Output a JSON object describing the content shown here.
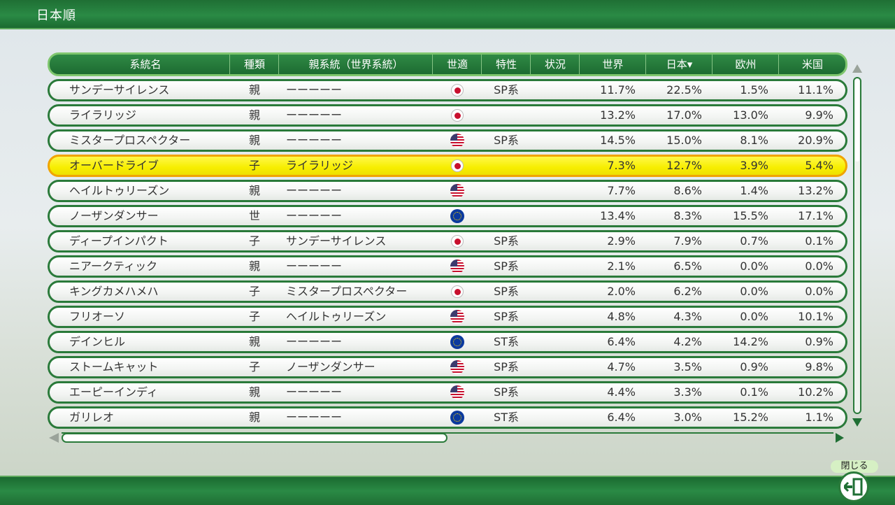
{
  "page": {
    "title": "日本順"
  },
  "columns": {
    "name": "系統名",
    "kind": "種類",
    "parent": "親系統（世界系統）",
    "fit": "世適",
    "trait": "特性",
    "status": "状況",
    "world": "世界",
    "japan": "日本▾",
    "europe": "欧州",
    "us": "米国"
  },
  "rows": [
    {
      "name": "サンデーサイレンス",
      "kind": "親",
      "parent": "ーーーーー",
      "flag": "jp",
      "trait": "SP系",
      "status": "",
      "world": "11.7%",
      "japan": "22.5%",
      "europe": "1.5%",
      "us": "11.1%"
    },
    {
      "name": "ライラリッジ",
      "kind": "親",
      "parent": "ーーーーー",
      "flag": "jp",
      "trait": "",
      "status": "",
      "world": "13.2%",
      "japan": "17.0%",
      "europe": "13.0%",
      "us": "9.9%"
    },
    {
      "name": "ミスタープロスペクター",
      "kind": "親",
      "parent": "ーーーーー",
      "flag": "us",
      "trait": "SP系",
      "status": "",
      "world": "14.5%",
      "japan": "15.0%",
      "europe": "8.1%",
      "us": "20.9%"
    },
    {
      "name": "オーバードライブ",
      "kind": "子",
      "parent": "ライラリッジ",
      "flag": "jp",
      "trait": "",
      "status": "",
      "world": "7.3%",
      "japan": "12.7%",
      "europe": "3.9%",
      "us": "5.4%",
      "selected": true
    },
    {
      "name": "ヘイルトゥリーズン",
      "kind": "親",
      "parent": "ーーーーー",
      "flag": "us",
      "trait": "",
      "status": "",
      "world": "7.7%",
      "japan": "8.6%",
      "europe": "1.4%",
      "us": "13.2%"
    },
    {
      "name": "ノーザンダンサー",
      "kind": "世",
      "parent": "ーーーーー",
      "flag": "eu",
      "trait": "",
      "status": "",
      "world": "13.4%",
      "japan": "8.3%",
      "europe": "15.5%",
      "us": "17.1%"
    },
    {
      "name": "ディープインパクト",
      "kind": "子",
      "parent": "サンデーサイレンス",
      "flag": "jp",
      "trait": "SP系",
      "status": "",
      "world": "2.9%",
      "japan": "7.9%",
      "europe": "0.7%",
      "us": "0.1%"
    },
    {
      "name": "ニアークティック",
      "kind": "親",
      "parent": "ーーーーー",
      "flag": "us",
      "trait": "SP系",
      "status": "",
      "world": "2.1%",
      "japan": "6.5%",
      "europe": "0.0%",
      "us": "0.0%"
    },
    {
      "name": "キングカメハメハ",
      "kind": "子",
      "parent": "ミスタープロスペクター",
      "flag": "jp",
      "trait": "SP系",
      "status": "",
      "world": "2.0%",
      "japan": "6.2%",
      "europe": "0.0%",
      "us": "0.0%"
    },
    {
      "name": "フリオーソ",
      "kind": "子",
      "parent": "ヘイルトゥリーズン",
      "flag": "us",
      "trait": "SP系",
      "status": "",
      "world": "4.8%",
      "japan": "4.3%",
      "europe": "0.0%",
      "us": "10.1%"
    },
    {
      "name": "デインヒル",
      "kind": "親",
      "parent": "ーーーーー",
      "flag": "eu",
      "trait": "ST系",
      "status": "",
      "world": "6.4%",
      "japan": "4.2%",
      "europe": "14.2%",
      "us": "0.9%"
    },
    {
      "name": "ストームキャット",
      "kind": "子",
      "parent": "ノーザンダンサー",
      "flag": "us",
      "trait": "SP系",
      "status": "",
      "world": "4.7%",
      "japan": "3.5%",
      "europe": "0.9%",
      "us": "9.8%"
    },
    {
      "name": "エーピーインディ",
      "kind": "親",
      "parent": "ーーーーー",
      "flag": "us",
      "trait": "SP系",
      "status": "",
      "world": "4.4%",
      "japan": "3.3%",
      "europe": "0.1%",
      "us": "10.2%"
    },
    {
      "name": "ガリレオ",
      "kind": "親",
      "parent": "ーーーーー",
      "flag": "eu",
      "trait": "ST系",
      "status": "",
      "world": "6.4%",
      "japan": "3.0%",
      "europe": "15.2%",
      "us": "1.1%"
    }
  ],
  "footer": {
    "close_label": "閉じる"
  }
}
